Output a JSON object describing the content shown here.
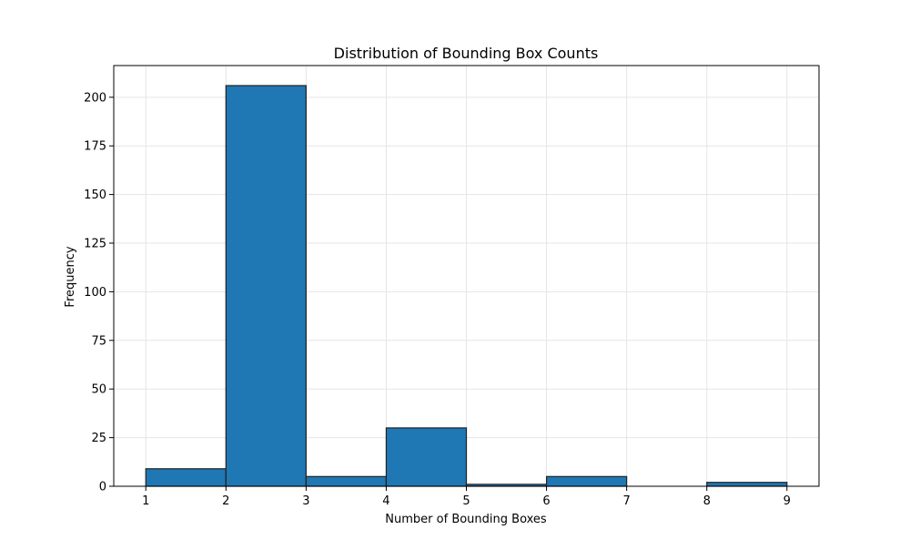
{
  "chart_data": {
    "type": "bar",
    "title": "Distribution of Bounding Box Counts",
    "xlabel": "Number of Bounding Boxes",
    "ylabel": "Frequency",
    "bins": [
      {
        "x0": 1,
        "x1": 2,
        "value": 9
      },
      {
        "x0": 2,
        "x1": 3,
        "value": 206
      },
      {
        "x0": 3,
        "x1": 4,
        "value": 5
      },
      {
        "x0": 4,
        "x1": 5,
        "value": 30
      },
      {
        "x0": 5,
        "x1": 6,
        "value": 1
      },
      {
        "x0": 6,
        "x1": 7,
        "value": 5
      },
      {
        "x0": 7,
        "x1": 8,
        "value": 0
      },
      {
        "x0": 8,
        "x1": 9,
        "value": 2
      }
    ],
    "xlim": [
      0.6,
      9.4
    ],
    "ylim": [
      0,
      216.3
    ],
    "xticks": [
      1,
      2,
      3,
      4,
      5,
      6,
      7,
      8,
      9
    ],
    "yticks": [
      0,
      25,
      50,
      75,
      100,
      125,
      150,
      175,
      200
    ],
    "grid": true,
    "bar_color": "#1f77b4",
    "edge_color": "#222222",
    "grid_color": "#e5e5e5"
  }
}
